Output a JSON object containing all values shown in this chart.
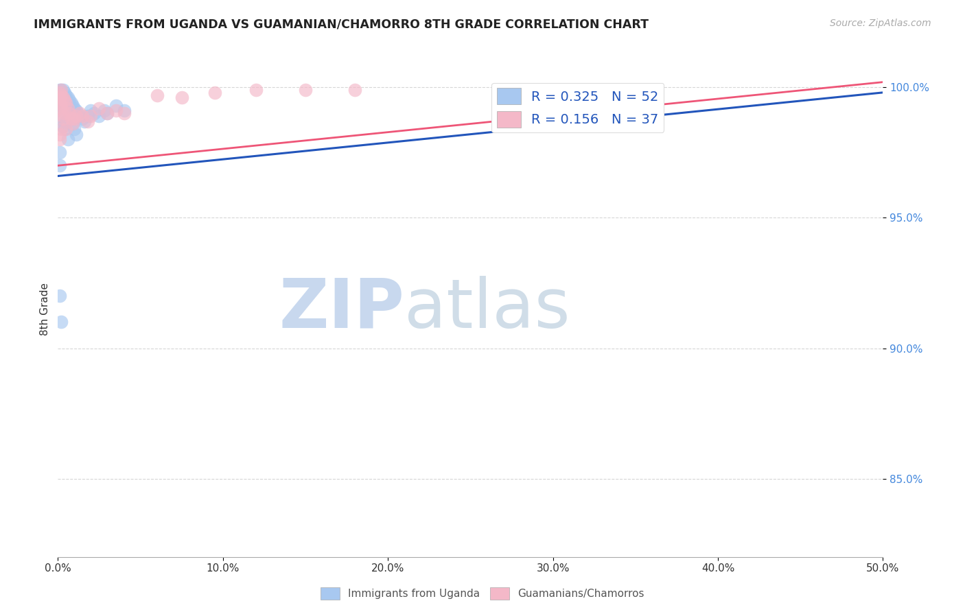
{
  "title": "IMMIGRANTS FROM UGANDA VS GUAMANIAN/CHAMORRO 8TH GRADE CORRELATION CHART",
  "source": "Source: ZipAtlas.com",
  "ylabel": "8th Grade",
  "xlim": [
    0.0,
    0.5
  ],
  "ylim": [
    0.82,
    1.01
  ],
  "xtick_labels": [
    "0.0%",
    "10.0%",
    "20.0%",
    "30.0%",
    "40.0%",
    "50.0%"
  ],
  "xtick_values": [
    0.0,
    0.1,
    0.2,
    0.3,
    0.4,
    0.5
  ],
  "ytick_labels": [
    "85.0%",
    "90.0%",
    "95.0%",
    "100.0%"
  ],
  "ytick_values": [
    0.85,
    0.9,
    0.95,
    1.0
  ],
  "color_blue": "#A8C8F0",
  "color_pink": "#F4B8C8",
  "line_blue": "#2255BB",
  "line_pink": "#EE5577",
  "blue_scatter_x": [
    0.001,
    0.001,
    0.001,
    0.001,
    0.001,
    0.001,
    0.002,
    0.002,
    0.002,
    0.002,
    0.002,
    0.003,
    0.003,
    0.003,
    0.003,
    0.004,
    0.004,
    0.004,
    0.005,
    0.005,
    0.005,
    0.006,
    0.006,
    0.006,
    0.007,
    0.007,
    0.008,
    0.008,
    0.009,
    0.009,
    0.01,
    0.01,
    0.011,
    0.011,
    0.012,
    0.013,
    0.015,
    0.016,
    0.018,
    0.02,
    0.022,
    0.025,
    0.028,
    0.03,
    0.035,
    0.04,
    0.001,
    0.002,
    0.001,
    0.001,
    0.003,
    0.004
  ],
  "blue_scatter_y": [
    0.999,
    0.998,
    0.997,
    0.996,
    0.994,
    0.992,
    0.999,
    0.998,
    0.997,
    0.995,
    0.993,
    0.999,
    0.997,
    0.995,
    0.985,
    0.998,
    0.996,
    0.984,
    0.997,
    0.995,
    0.987,
    0.996,
    0.994,
    0.98,
    0.995,
    0.99,
    0.994,
    0.988,
    0.993,
    0.986,
    0.992,
    0.984,
    0.991,
    0.982,
    0.99,
    0.989,
    0.988,
    0.987,
    0.989,
    0.991,
    0.99,
    0.989,
    0.991,
    0.99,
    0.993,
    0.991,
    0.92,
    0.91,
    0.975,
    0.97,
    0.988,
    0.986
  ],
  "pink_scatter_x": [
    0.001,
    0.001,
    0.001,
    0.001,
    0.002,
    0.002,
    0.002,
    0.003,
    0.003,
    0.004,
    0.004,
    0.005,
    0.005,
    0.006,
    0.007,
    0.008,
    0.009,
    0.01,
    0.011,
    0.013,
    0.015,
    0.018,
    0.02,
    0.025,
    0.03,
    0.035,
    0.04,
    0.002,
    0.003,
    0.001,
    0.001,
    0.12,
    0.18,
    0.15,
    0.095,
    0.06,
    0.075
  ],
  "pink_scatter_y": [
    0.998,
    0.996,
    0.994,
    0.992,
    0.999,
    0.997,
    0.993,
    0.996,
    0.989,
    0.995,
    0.99,
    0.994,
    0.984,
    0.992,
    0.99,
    0.988,
    0.986,
    0.988,
    0.989,
    0.99,
    0.989,
    0.987,
    0.989,
    0.992,
    0.99,
    0.991,
    0.99,
    0.984,
    0.988,
    0.982,
    0.98,
    0.999,
    0.999,
    0.999,
    0.998,
    0.997,
    0.996
  ],
  "blue_line_x0": 0.0,
  "blue_line_x1": 0.5,
  "blue_line_y0": 0.966,
  "blue_line_y1": 0.998,
  "pink_line_x0": 0.0,
  "pink_line_x1": 0.5,
  "pink_line_y0": 0.97,
  "pink_line_y1": 1.002,
  "watermark_zip": "ZIP",
  "watermark_atlas": "atlas",
  "watermark_color": "#DDEEFF",
  "background_color": "#FFFFFF",
  "grid_color": "#CCCCCC"
}
